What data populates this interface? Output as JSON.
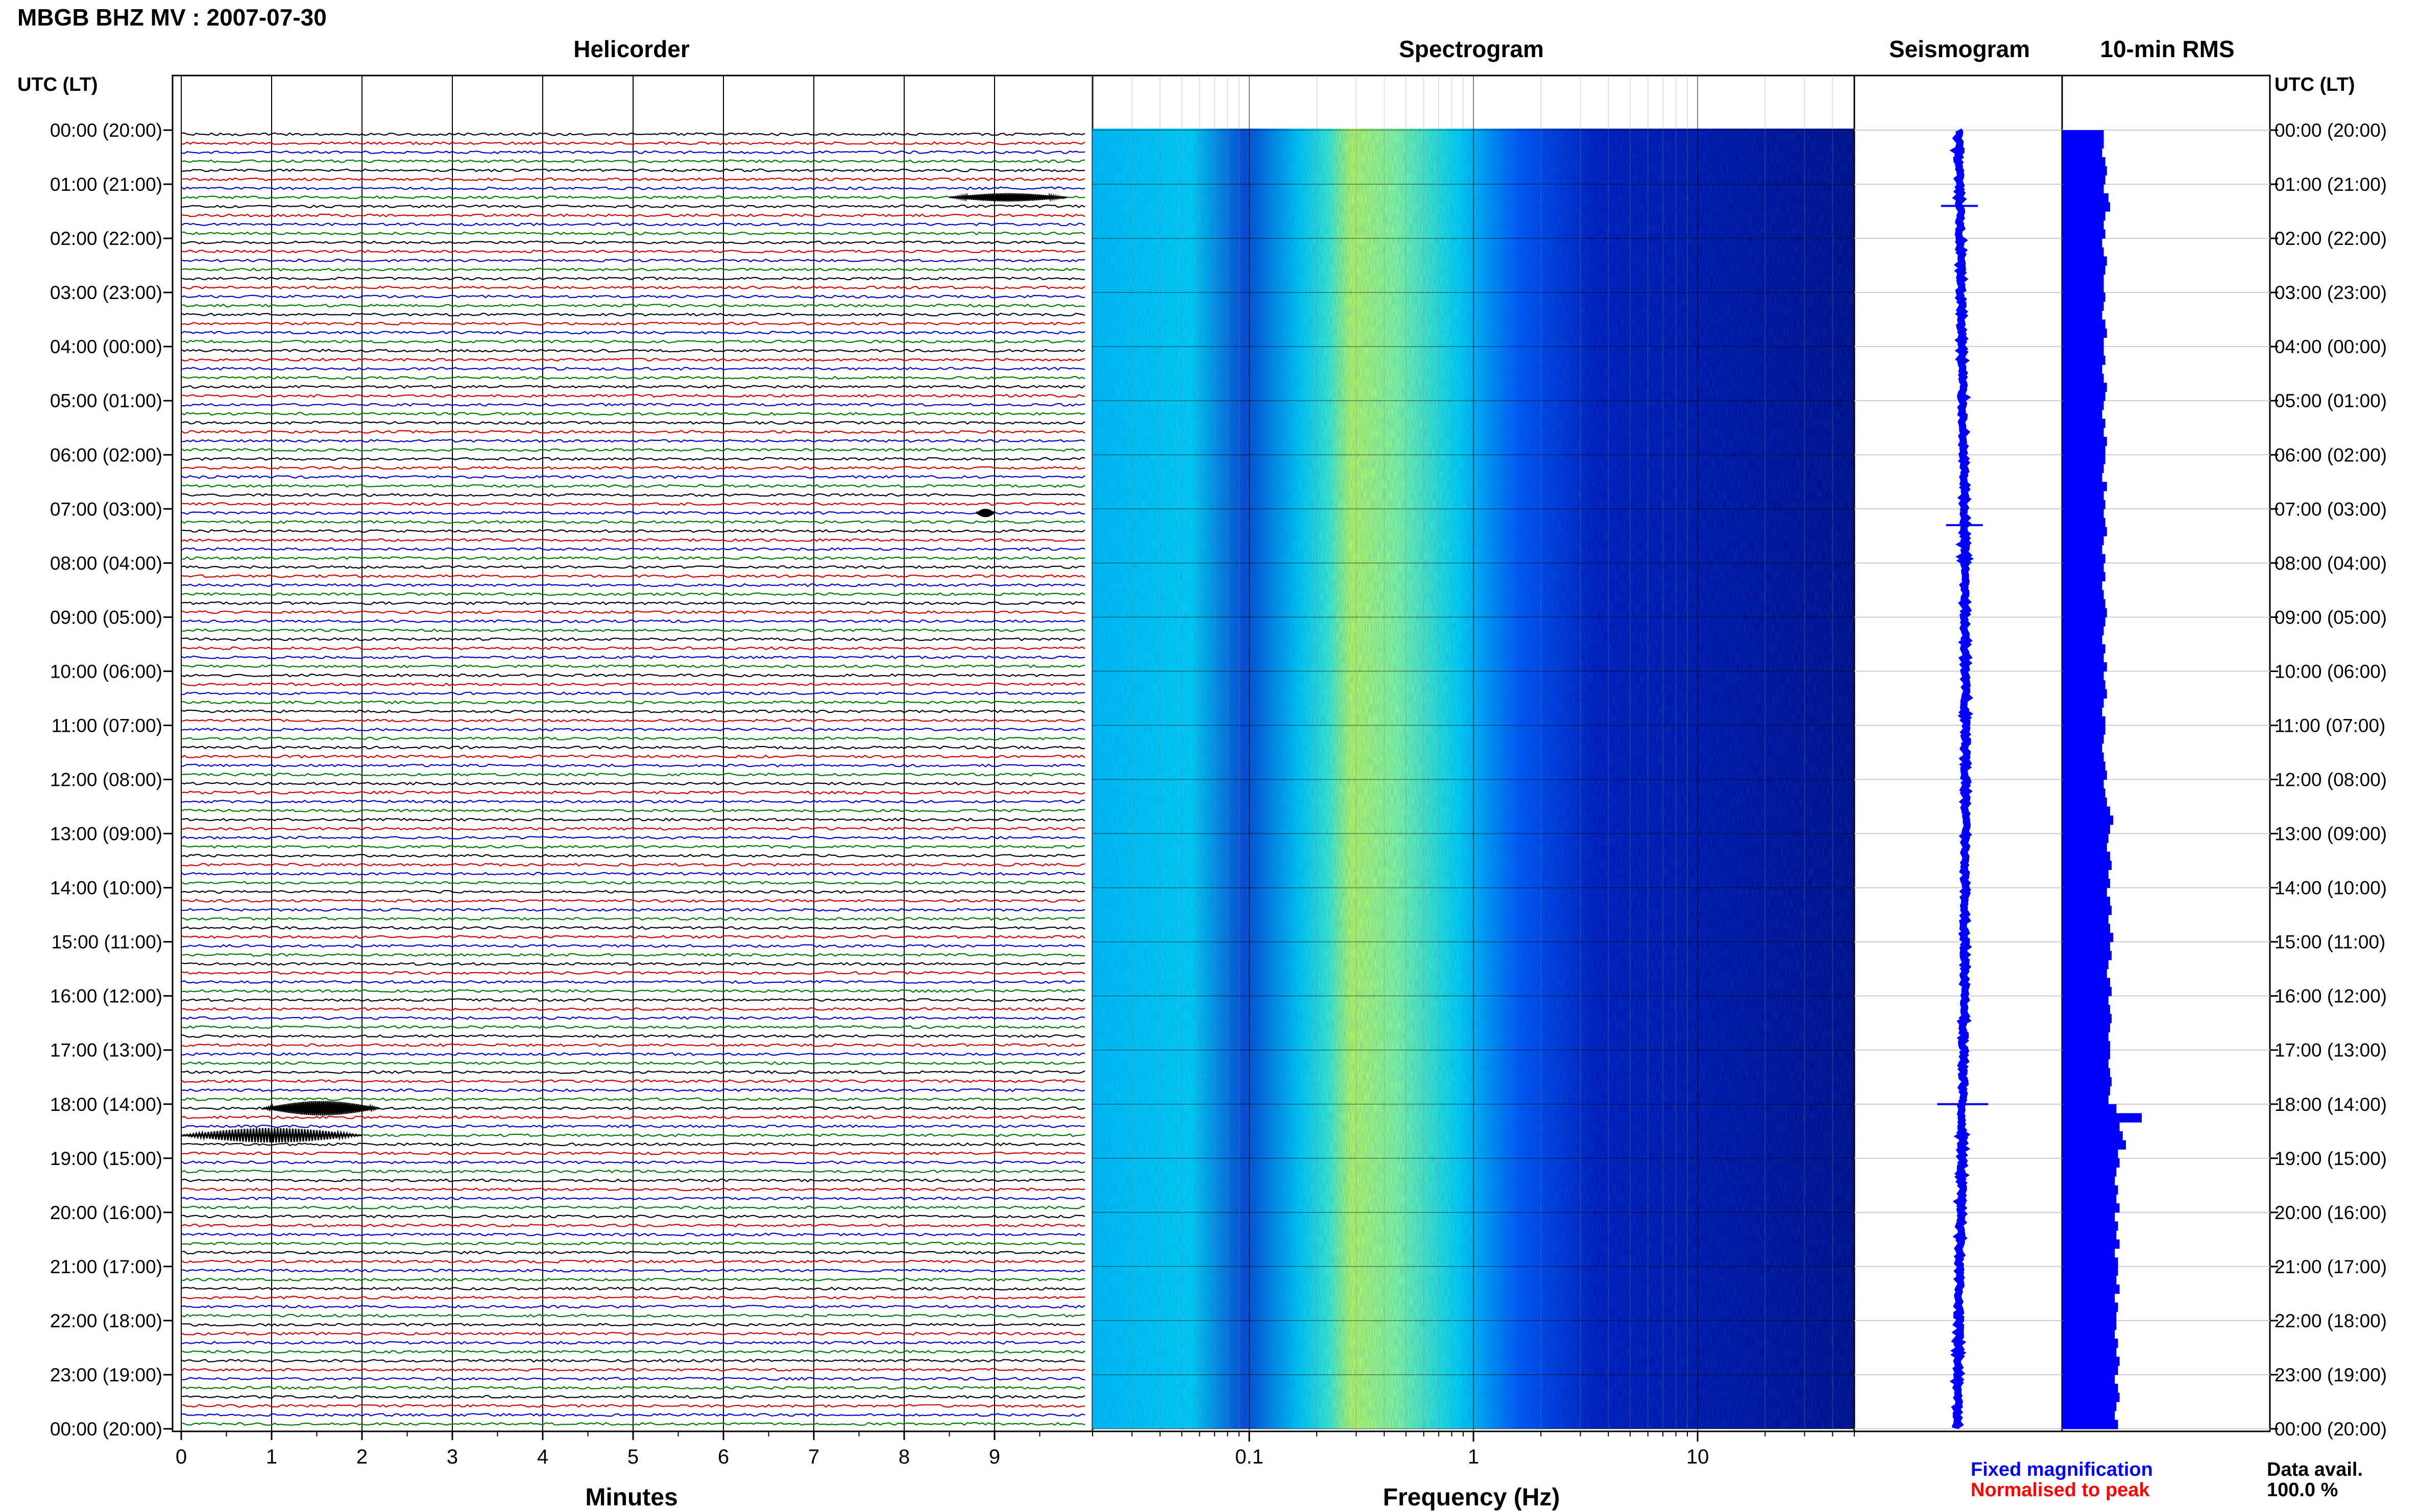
{
  "header": {
    "title": "MBGB BHZ MV : 2007-07-30",
    "utc_label_left": "UTC (LT)",
    "utc_label_right": "UTC (LT)"
  },
  "panels": {
    "helicorder": "Helicorder",
    "spectrogram": "Spectrogram",
    "seismogram": "Seismogram",
    "rms": "10-min RMS"
  },
  "time_labels": [
    "00:00 (20:00)",
    "01:00 (21:00)",
    "02:00 (22:00)",
    "03:00 (23:00)",
    "04:00 (00:00)",
    "05:00 (01:00)",
    "06:00 (02:00)",
    "07:00 (03:00)",
    "08:00 (04:00)",
    "09:00 (05:00)",
    "10:00 (06:00)",
    "11:00 (07:00)",
    "12:00 (08:00)",
    "13:00 (09:00)",
    "14:00 (10:00)",
    "15:00 (11:00)",
    "16:00 (12:00)",
    "17:00 (13:00)",
    "18:00 (14:00)",
    "19:00 (15:00)",
    "20:00 (16:00)",
    "21:00 (17:00)",
    "22:00 (18:00)",
    "23:00 (19:00)",
    "00:00 (20:00)"
  ],
  "chart_data": [
    {
      "type": "line",
      "panel": "Helicorder",
      "xlabel": "Minutes",
      "x_ticks": [
        "0",
        "1",
        "2",
        "3",
        "4",
        "5",
        "6",
        "7",
        "8",
        "9"
      ],
      "xlim": [
        0,
        10
      ],
      "trace_colors": [
        "#000000",
        "#d10000",
        "#0000d0",
        "#007a00"
      ],
      "traces_per_hour": 6,
      "events": [
        {
          "time": "01:10",
          "minutes": [
            8.5,
            9.8
          ],
          "level": "moderate"
        },
        {
          "time": "07:00",
          "minutes": [
            8.8,
            9.0
          ],
          "level": "moderate"
        },
        {
          "time": "18:00",
          "minutes": [
            0.9,
            2.2
          ],
          "level": "high"
        },
        {
          "time": "18:30",
          "minutes": [
            0.0,
            2.0
          ],
          "level": "high"
        }
      ]
    },
    {
      "type": "heatmap",
      "panel": "Spectrogram",
      "xlabel": "Frequency (Hz)",
      "x_scale": "log",
      "x_ticks": [
        "0.1",
        "1",
        "10"
      ],
      "xlim": [
        0.02,
        50
      ],
      "colormap": [
        "#00008a",
        "#0000ff",
        "#0070ff",
        "#00d8ff",
        "#50ffb0",
        "#d8ff40"
      ],
      "peak_frequency_hz": 0.35
    },
    {
      "type": "line",
      "panel": "Seismogram",
      "legend": [
        "Fixed magnification",
        "Normalised to peak"
      ],
      "legend_colors": [
        "#0000ff",
        "#ff0000"
      ]
    },
    {
      "type": "bar",
      "panel": "10-min RMS",
      "orientation": "horizontal",
      "color": "#0000ff",
      "values": [
        26,
        26,
        25,
        27,
        28,
        27,
        26,
        29,
        30,
        27,
        26,
        27,
        25,
        26,
        28,
        27,
        26,
        26,
        27,
        26,
        25,
        27,
        28,
        26,
        26,
        27,
        25,
        26,
        28,
        27,
        26,
        25,
        27,
        26,
        28,
        27,
        27,
        26,
        25,
        28,
        26,
        27,
        26,
        27,
        28,
        26,
        25,
        27,
        26,
        27,
        25,
        26,
        27,
        28,
        27,
        26,
        25,
        27,
        26,
        28,
        26,
        27,
        28,
        26,
        25,
        27,
        27,
        26,
        25,
        26,
        27,
        28,
        26,
        27,
        28,
        30,
        32,
        30,
        29,
        28,
        30,
        31,
        29,
        30,
        28,
        30,
        31,
        29,
        30,
        32,
        30,
        31,
        29,
        28,
        30,
        31,
        29,
        30,
        31,
        30,
        29,
        30,
        30,
        29,
        30,
        31,
        30,
        29,
        34,
        50,
        36,
        38,
        40,
        35,
        36,
        34,
        33,
        35,
        34,
        36,
        33,
        35,
        34,
        36,
        33,
        35,
        35,
        34,
        36,
        33,
        35,
        34,
        34,
        33,
        35,
        34,
        36,
        35,
        33,
        35,
        36,
        34,
        33,
        35
      ],
      "peak_index": 109,
      "data_available_label": "Data avail.",
      "data_available_value": "100.0 %"
    }
  ]
}
